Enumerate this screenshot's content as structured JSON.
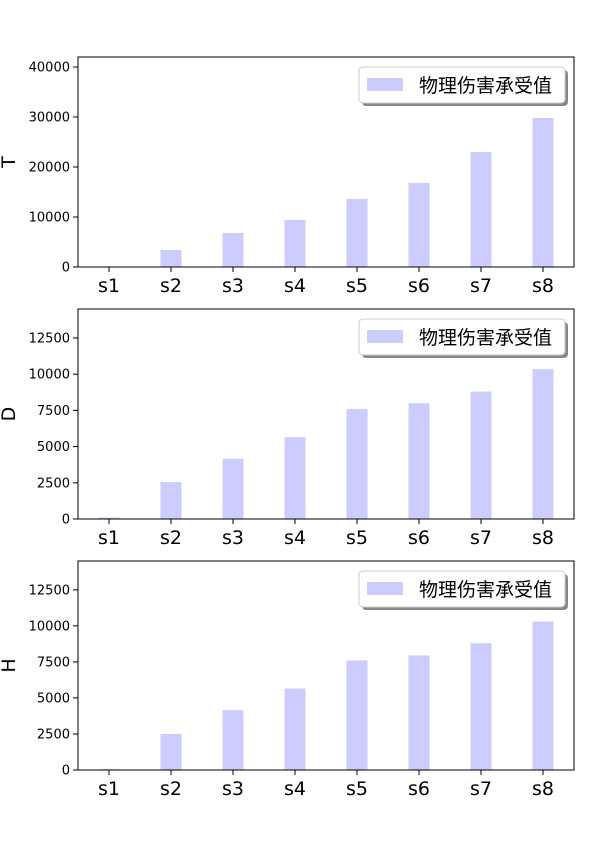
{
  "chart_data": [
    {
      "type": "bar",
      "ylabel": "T",
      "categories": [
        "s1",
        "s2",
        "s3",
        "s4",
        "s5",
        "s6",
        "s7",
        "s8"
      ],
      "series": [
        {
          "name": "物理伤害承受值",
          "values": [
            0,
            3400,
            6800,
            9400,
            13600,
            16800,
            23000,
            29800
          ]
        }
      ],
      "ylim": [
        0,
        42000
      ],
      "yticks": [
        0,
        10000,
        20000,
        30000,
        40000
      ],
      "legend_position": "top-right",
      "bar_color": "#ccccff"
    },
    {
      "type": "bar",
      "ylabel": "D",
      "categories": [
        "s1",
        "s2",
        "s3",
        "s4",
        "s5",
        "s6",
        "s7",
        "s8"
      ],
      "series": [
        {
          "name": "物理伤害承受值",
          "values": [
            100,
            2550,
            4150,
            5650,
            7600,
            8000,
            8800,
            10350
          ]
        }
      ],
      "ylim": [
        0,
        14500
      ],
      "yticks": [
        0,
        2500,
        5000,
        7500,
        10000,
        12500
      ],
      "legend_position": "top-right",
      "bar_color": "#ccccff"
    },
    {
      "type": "bar",
      "ylabel": "H",
      "categories": [
        "s1",
        "s2",
        "s3",
        "s4",
        "s5",
        "s6",
        "s7",
        "s8"
      ],
      "series": [
        {
          "name": "物理伤害承受值",
          "values": [
            60,
            2500,
            4150,
            5650,
            7600,
            7950,
            8800,
            10300
          ]
        }
      ],
      "ylim": [
        0,
        14500
      ],
      "yticks": [
        0,
        2500,
        5000,
        7500,
        10000,
        12500
      ],
      "legend_position": "top-right",
      "bar_color": "#ccccff"
    }
  ]
}
